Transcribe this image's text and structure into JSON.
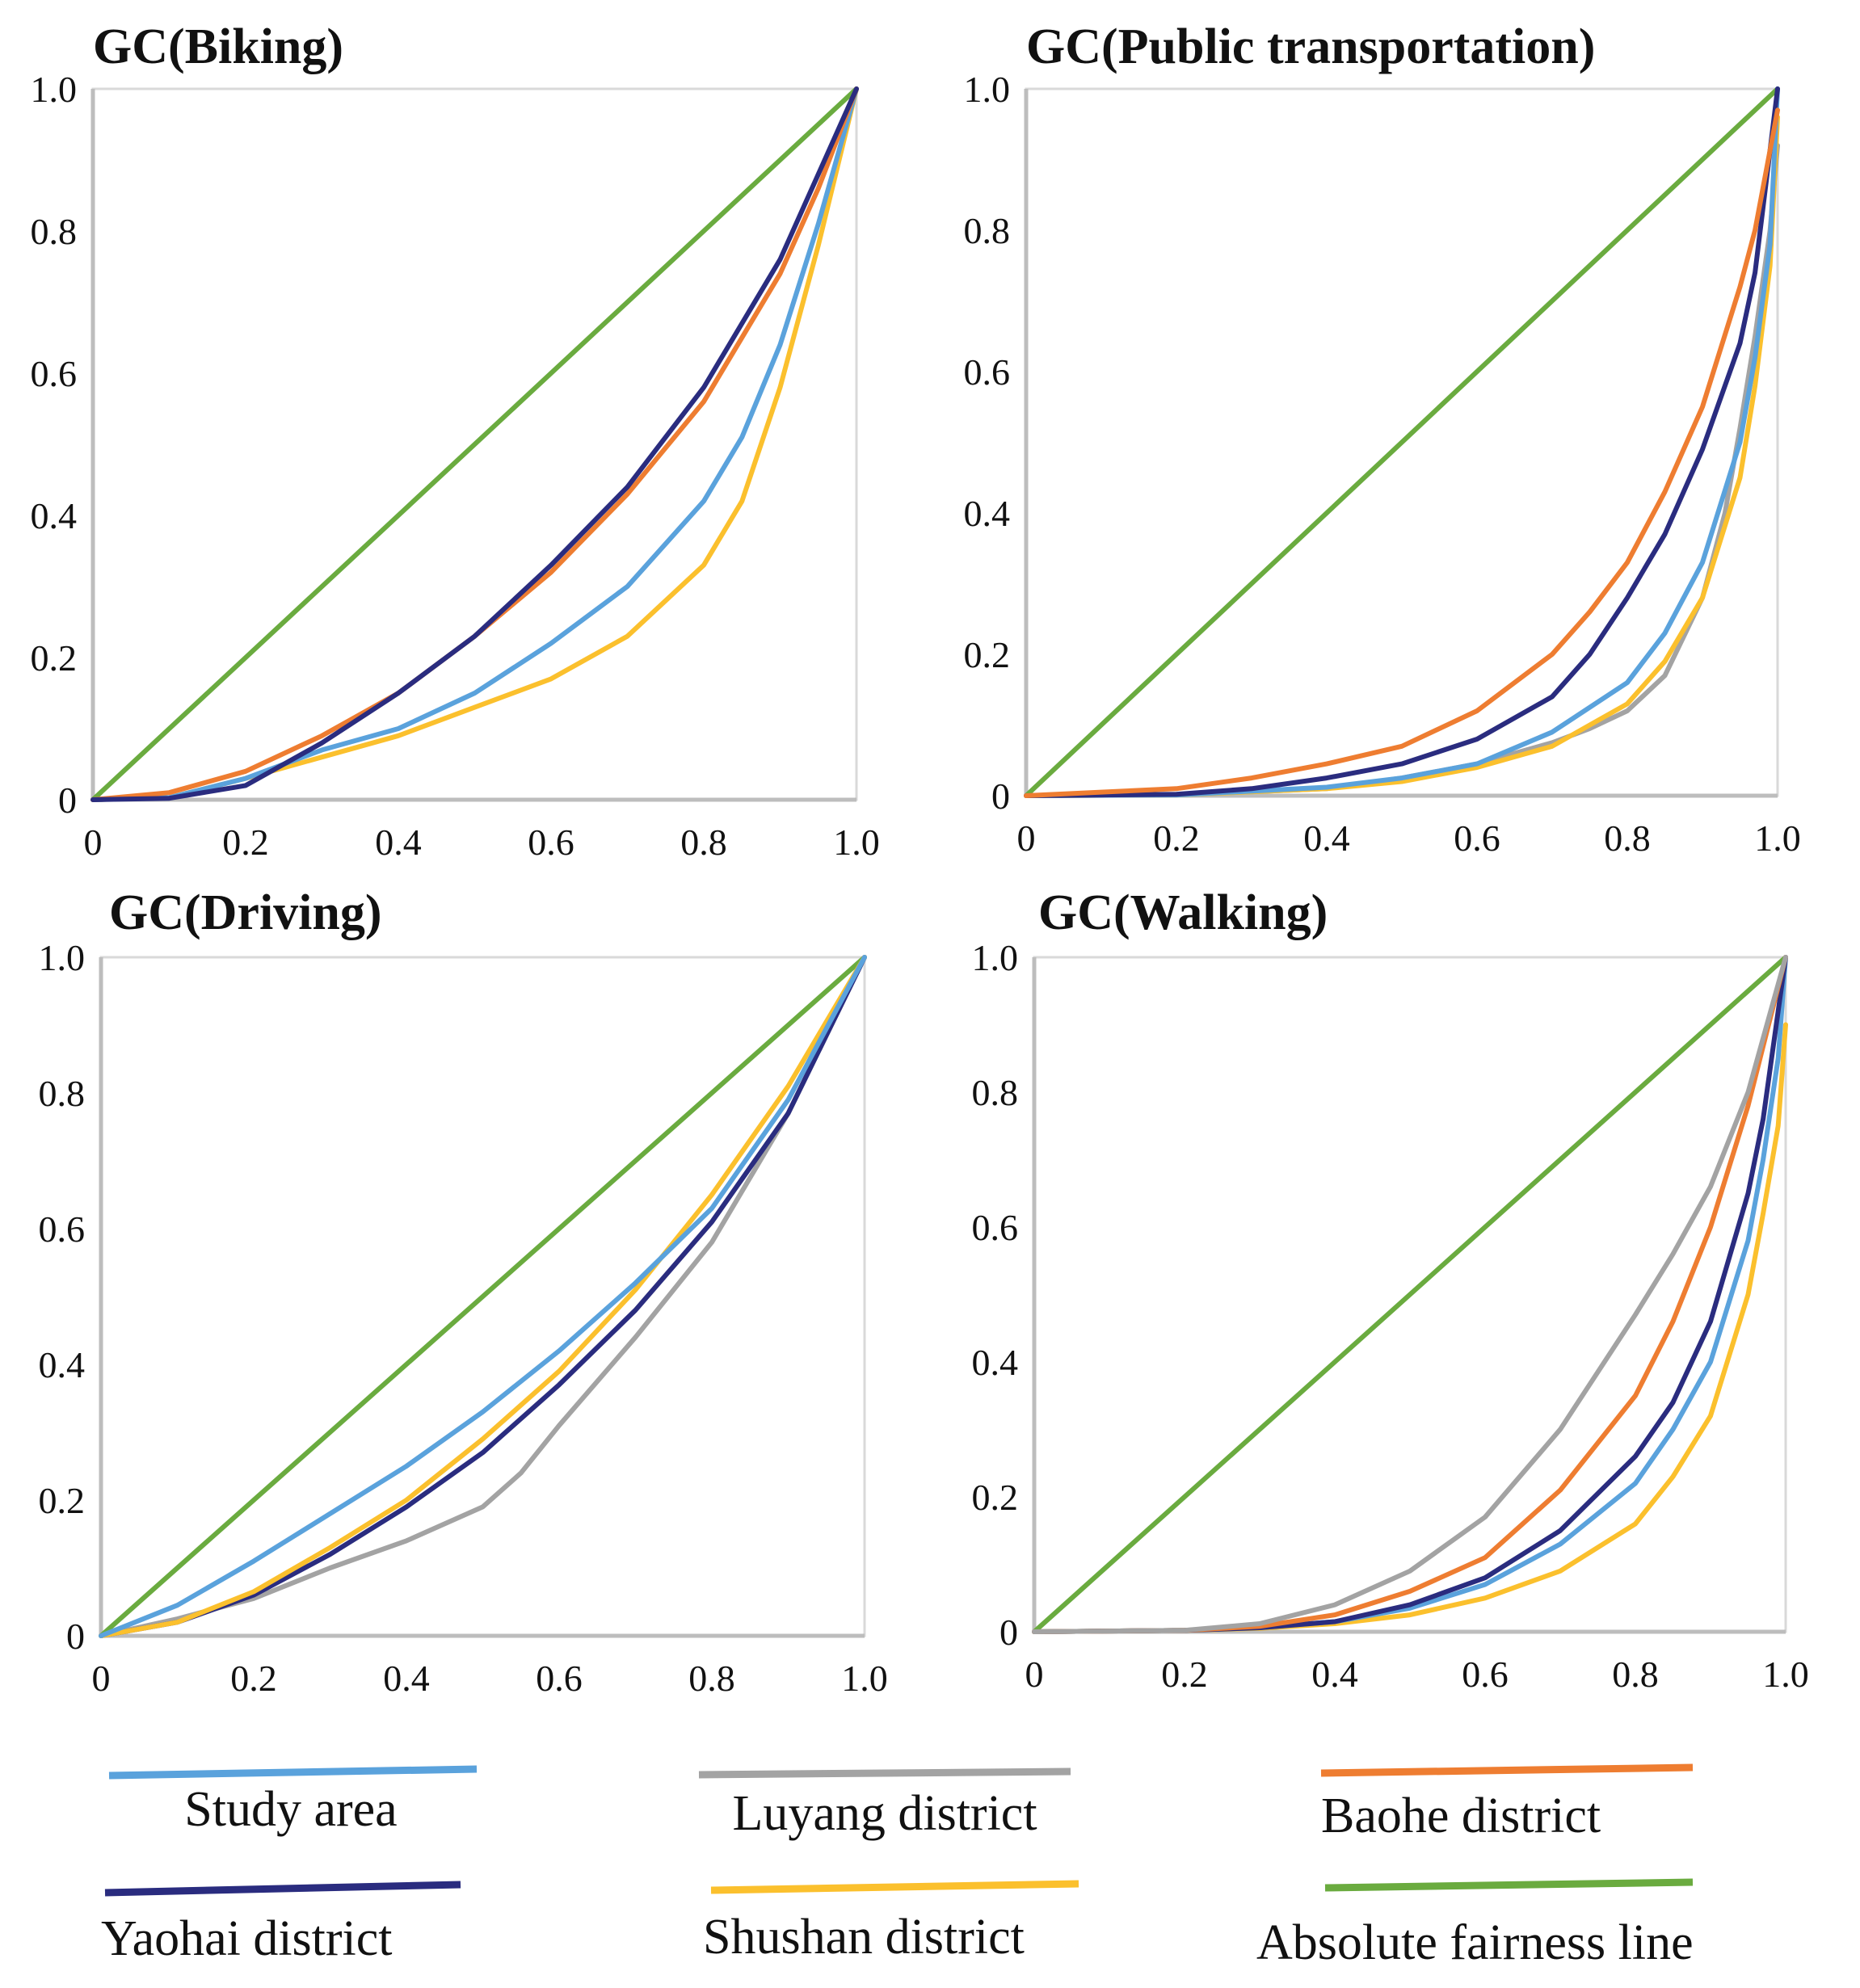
{
  "colors": {
    "study_area": "#5aa2dc",
    "luyang": "#a3a3a3",
    "baohe": "#ee7d31",
    "yaohai": "#2a2c7f",
    "shushan": "#fbc02d",
    "fairness": "#6aab3f"
  },
  "legend": [
    {
      "key": "study_area",
      "label": "Study area"
    },
    {
      "key": "luyang",
      "label": "Luyang district"
    },
    {
      "key": "baohe",
      "label": "Baohe district"
    },
    {
      "key": "yaohai",
      "label": "Yaohai district"
    },
    {
      "key": "shushan",
      "label": "Shushan district"
    },
    {
      "key": "fairness",
      "label": "Absolute fairness line"
    }
  ],
  "chart_data": [
    {
      "type": "line",
      "title": "GC(Biking)",
      "xlim": [
        0,
        1
      ],
      "ylim": [
        0,
        1
      ],
      "xticks": [
        "0",
        "0.2",
        "0.4",
        "0.6",
        "0.8",
        "1.0"
      ],
      "yticks": [
        "0",
        "0.2",
        "0.4",
        "0.6",
        "0.8",
        "1.0"
      ],
      "series": [
        {
          "key": "fairness",
          "x": [
            0,
            1
          ],
          "y": [
            0,
            1
          ]
        },
        {
          "key": "shushan",
          "x": [
            0,
            0.1,
            0.2,
            0.3,
            0.4,
            0.5,
            0.6,
            0.7,
            0.8,
            0.85,
            0.9,
            0.95,
            1.0
          ],
          "y": [
            0,
            0.003,
            0.03,
            0.06,
            0.09,
            0.13,
            0.17,
            0.23,
            0.33,
            0.42,
            0.58,
            0.78,
            1.0
          ]
        },
        {
          "key": "study_area",
          "x": [
            0,
            0.1,
            0.2,
            0.3,
            0.4,
            0.5,
            0.6,
            0.7,
            0.8,
            0.85,
            0.9,
            0.95,
            1.0
          ],
          "y": [
            0,
            0.003,
            0.03,
            0.07,
            0.1,
            0.15,
            0.22,
            0.3,
            0.42,
            0.51,
            0.64,
            0.81,
            1.0
          ]
        },
        {
          "key": "baohe",
          "x": [
            0,
            0.1,
            0.2,
            0.3,
            0.4,
            0.5,
            0.6,
            0.7,
            0.8,
            0.9,
            0.95,
            1.0
          ],
          "y": [
            0,
            0.01,
            0.04,
            0.09,
            0.15,
            0.23,
            0.32,
            0.43,
            0.56,
            0.74,
            0.86,
            1.0
          ]
        },
        {
          "key": "yaohai",
          "x": [
            0,
            0.1,
            0.2,
            0.3,
            0.4,
            0.5,
            0.6,
            0.7,
            0.8,
            0.9,
            0.95,
            1.0
          ],
          "y": [
            0,
            0.002,
            0.02,
            0.08,
            0.15,
            0.23,
            0.33,
            0.44,
            0.58,
            0.76,
            0.88,
            1.0
          ]
        }
      ]
    },
    {
      "type": "line",
      "title": "GC(Public transportation)",
      "xlim": [
        0,
        1
      ],
      "ylim": [
        0,
        1
      ],
      "xticks": [
        "0",
        "0.2",
        "0.4",
        "0.6",
        "0.8",
        "1.0"
      ],
      "yticks": [
        "0",
        "0.2",
        "0.4",
        "0.6",
        "0.8",
        "1.0"
      ],
      "series": [
        {
          "key": "fairness",
          "x": [
            0,
            1
          ],
          "y": [
            0,
            1
          ]
        },
        {
          "key": "luyang",
          "x": [
            0,
            0.2,
            0.4,
            0.5,
            0.6,
            0.7,
            0.75,
            0.8,
            0.85,
            0.9,
            0.93,
            0.95,
            0.97,
            0.99,
            1.0
          ],
          "y": [
            0,
            0.001,
            0.01,
            0.025,
            0.045,
            0.075,
            0.095,
            0.12,
            0.17,
            0.28,
            0.4,
            0.52,
            0.65,
            0.8,
            0.92
          ]
        },
        {
          "key": "shushan",
          "x": [
            0,
            0.2,
            0.4,
            0.5,
            0.6,
            0.7,
            0.8,
            0.85,
            0.9,
            0.95,
            0.97,
            0.99,
            1.0
          ],
          "y": [
            0,
            0.001,
            0.01,
            0.02,
            0.04,
            0.07,
            0.13,
            0.19,
            0.28,
            0.45,
            0.58,
            0.75,
            0.96
          ]
        },
        {
          "key": "study_area",
          "x": [
            0,
            0.2,
            0.4,
            0.5,
            0.6,
            0.7,
            0.8,
            0.85,
            0.9,
            0.95,
            0.97,
            0.99,
            1.0
          ],
          "y": [
            0,
            0.001,
            0.012,
            0.025,
            0.045,
            0.09,
            0.16,
            0.23,
            0.33,
            0.5,
            0.62,
            0.78,
            1.0
          ]
        },
        {
          "key": "yaohai",
          "x": [
            0,
            0.2,
            0.3,
            0.4,
            0.5,
            0.6,
            0.7,
            0.75,
            0.8,
            0.85,
            0.9,
            0.95,
            0.97,
            1.0
          ],
          "y": [
            0,
            0.002,
            0.01,
            0.025,
            0.045,
            0.08,
            0.14,
            0.2,
            0.28,
            0.37,
            0.49,
            0.64,
            0.74,
            1.0
          ]
        },
        {
          "key": "baohe",
          "x": [
            0,
            0.1,
            0.2,
            0.3,
            0.4,
            0.5,
            0.6,
            0.7,
            0.75,
            0.8,
            0.85,
            0.9,
            0.95,
            0.97,
            1.0
          ],
          "y": [
            0,
            0.005,
            0.01,
            0.025,
            0.045,
            0.07,
            0.12,
            0.2,
            0.26,
            0.33,
            0.43,
            0.55,
            0.72,
            0.8,
            0.97
          ]
        }
      ]
    },
    {
      "type": "line",
      "title": "GC(Driving)",
      "xlim": [
        0,
        1
      ],
      "ylim": [
        0,
        1
      ],
      "xticks": [
        "0",
        "0.2",
        "0.4",
        "0.6",
        "0.8",
        "1.0"
      ],
      "yticks": [
        "0",
        "0.2",
        "0.4",
        "0.6",
        "0.8",
        "1.0"
      ],
      "series": [
        {
          "key": "fairness",
          "x": [
            0,
            1
          ],
          "y": [
            0,
            1
          ]
        },
        {
          "key": "luyang",
          "x": [
            0,
            0.1,
            0.2,
            0.3,
            0.4,
            0.5,
            0.55,
            0.6,
            0.7,
            0.8,
            0.9,
            1.0
          ],
          "y": [
            0,
            0.025,
            0.055,
            0.1,
            0.14,
            0.19,
            0.24,
            0.31,
            0.44,
            0.58,
            0.77,
            1.0
          ]
        },
        {
          "key": "yaohai",
          "x": [
            0,
            0.1,
            0.2,
            0.3,
            0.4,
            0.5,
            0.6,
            0.7,
            0.8,
            0.9,
            1.0
          ],
          "y": [
            0,
            0.02,
            0.06,
            0.12,
            0.19,
            0.27,
            0.37,
            0.48,
            0.61,
            0.77,
            1.0
          ]
        },
        {
          "key": "shushan",
          "x": [
            0,
            0.1,
            0.2,
            0.3,
            0.4,
            0.5,
            0.6,
            0.7,
            0.8,
            0.9,
            1.0
          ],
          "y": [
            0,
            0.02,
            0.065,
            0.13,
            0.2,
            0.29,
            0.39,
            0.51,
            0.65,
            0.81,
            1.0
          ]
        },
        {
          "key": "study_area",
          "x": [
            0,
            0.1,
            0.2,
            0.3,
            0.4,
            0.5,
            0.6,
            0.7,
            0.8,
            0.9,
            1.0
          ],
          "y": [
            0,
            0.045,
            0.11,
            0.18,
            0.25,
            0.33,
            0.42,
            0.52,
            0.63,
            0.79,
            1.0
          ]
        }
      ]
    },
    {
      "type": "line",
      "title": "GC(Walking)",
      "xlim": [
        0,
        1
      ],
      "ylim": [
        0,
        1
      ],
      "xticks": [
        "0",
        "0.2",
        "0.4",
        "0.6",
        "0.8",
        "1.0"
      ],
      "yticks": [
        "0",
        "0.2",
        "0.4",
        "0.6",
        "0.8",
        "1.0"
      ],
      "series": [
        {
          "key": "fairness",
          "x": [
            0,
            1
          ],
          "y": [
            0,
            1
          ]
        },
        {
          "key": "shushan",
          "x": [
            0,
            0.2,
            0.3,
            0.4,
            0.5,
            0.6,
            0.7,
            0.8,
            0.85,
            0.9,
            0.95,
            0.97,
            0.99,
            1.0
          ],
          "y": [
            0,
            0.002,
            0.005,
            0.012,
            0.025,
            0.05,
            0.09,
            0.16,
            0.23,
            0.32,
            0.5,
            0.62,
            0.75,
            0.9
          ]
        },
        {
          "key": "study_area",
          "x": [
            0,
            0.2,
            0.3,
            0.4,
            0.5,
            0.6,
            0.7,
            0.8,
            0.85,
            0.9,
            0.95,
            0.97,
            0.99,
            1.0
          ],
          "y": [
            0,
            0.002,
            0.006,
            0.015,
            0.035,
            0.07,
            0.13,
            0.22,
            0.3,
            0.4,
            0.58,
            0.7,
            0.85,
            1.0
          ]
        },
        {
          "key": "yaohai",
          "x": [
            0,
            0.2,
            0.3,
            0.4,
            0.5,
            0.6,
            0.7,
            0.8,
            0.85,
            0.9,
            0.95,
            0.97,
            1.0
          ],
          "y": [
            0,
            0.002,
            0.006,
            0.015,
            0.04,
            0.08,
            0.15,
            0.26,
            0.34,
            0.46,
            0.65,
            0.76,
            1.0
          ]
        },
        {
          "key": "baohe",
          "x": [
            0,
            0.2,
            0.3,
            0.4,
            0.5,
            0.6,
            0.7,
            0.8,
            0.85,
            0.9,
            0.95,
            1.0
          ],
          "y": [
            0,
            0.002,
            0.008,
            0.025,
            0.06,
            0.11,
            0.21,
            0.35,
            0.46,
            0.6,
            0.78,
            1.0
          ]
        },
        {
          "key": "luyang",
          "x": [
            0,
            0.2,
            0.3,
            0.4,
            0.5,
            0.6,
            0.7,
            0.8,
            0.85,
            0.9,
            0.95,
            1.0
          ],
          "y": [
            0,
            0.002,
            0.012,
            0.04,
            0.09,
            0.17,
            0.3,
            0.47,
            0.56,
            0.66,
            0.8,
            1.0
          ]
        }
      ]
    }
  ]
}
